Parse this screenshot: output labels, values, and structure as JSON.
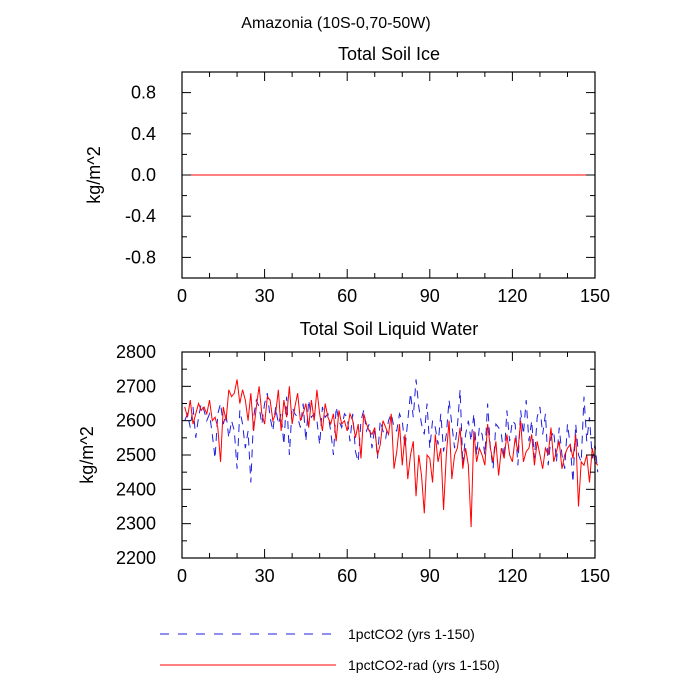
{
  "figure": {
    "title": "Amazonia (10S-0,70-50W)"
  },
  "legend": {
    "entries": [
      {
        "label": "1pctCO2 (yrs 1-150)",
        "color": "#1f1fe0",
        "dash": "dashed"
      },
      {
        "label": "1pctCO2-rad (yrs 1-150)",
        "color": "#ff0000",
        "dash": "solid"
      }
    ]
  },
  "chart_data": [
    {
      "type": "line",
      "title": "Total Soil Ice",
      "xlabel": "",
      "ylabel": "kg/m^2",
      "xlim": [
        0,
        150
      ],
      "ylim": [
        -1.0,
        1.0
      ],
      "xticks": [
        0,
        30,
        60,
        90,
        120,
        150
      ],
      "yticks": [
        -0.8,
        -0.4,
        0.0,
        0.4,
        0.8
      ],
      "ytick_labels": [
        "-0.8",
        "-0.4",
        "0.0",
        "0.4",
        "0.8"
      ],
      "series": [
        {
          "name": "1pctCO2 (yrs 1-150)",
          "color": "#1f1fe0",
          "dash": "dashed",
          "constant": 0.0
        },
        {
          "name": "1pctCO2-rad (yrs 1-150)",
          "color": "#ff0000",
          "dash": "solid",
          "constant": 0.0
        }
      ]
    },
    {
      "type": "line",
      "title": "Total Soil Liquid Water",
      "xlabel": "",
      "ylabel": "kg/m^2",
      "xlim": [
        0,
        150
      ],
      "ylim": [
        2200,
        2800
      ],
      "xticks": [
        0,
        30,
        60,
        90,
        120,
        150
      ],
      "yticks": [
        2200,
        2300,
        2400,
        2500,
        2600,
        2700,
        2800
      ],
      "ytick_labels": [
        "2200",
        "2300",
        "2400",
        "2500",
        "2600",
        "2700",
        "2800"
      ],
      "series": [
        {
          "name": "1pctCO2 (yrs 1-150)",
          "color": "#1f1fe0",
          "dash": "dashed",
          "values": [
            2600,
            2620,
            2580,
            2640,
            2550,
            2610,
            2650,
            2630,
            2600,
            2620,
            2560,
            2490,
            2620,
            2650,
            2590,
            2620,
            2550,
            2600,
            2570,
            2460,
            2630,
            2590,
            2520,
            2570,
            2420,
            2610,
            2660,
            2640,
            2590,
            2650,
            2680,
            2610,
            2570,
            2640,
            2590,
            2620,
            2530,
            2670,
            2500,
            2640,
            2620,
            2610,
            2580,
            2650,
            2540,
            2660,
            2610,
            2620,
            2600,
            2530,
            2640,
            2610,
            2620,
            2570,
            2500,
            2640,
            2600,
            2580,
            2620,
            2610,
            2540,
            2620,
            2510,
            2480,
            2600,
            2630,
            2570,
            2590,
            2520,
            2580,
            2490,
            2600,
            2570,
            2550,
            2600,
            2620,
            2580,
            2570,
            2620,
            2600,
            2520,
            2600,
            2680,
            2610,
            2720,
            2640,
            2590,
            2560,
            2650,
            2520,
            2600,
            2580,
            2530,
            2620,
            2510,
            2560,
            2660,
            2590,
            2520,
            2580,
            2690,
            2470,
            2560,
            2600,
            2540,
            2620,
            2500,
            2580,
            2560,
            2500,
            2650,
            2520,
            2460,
            2590,
            2580,
            2560,
            2490,
            2630,
            2540,
            2600,
            2590,
            2470,
            2630,
            2560,
            2660,
            2540,
            2600,
            2490,
            2610,
            2640,
            2560,
            2620,
            2470,
            2550,
            2570,
            2480,
            2580,
            2500,
            2460,
            2590,
            2530,
            2420,
            2590,
            2500,
            2480,
            2670,
            2540,
            2610,
            2490,
            2530,
            2450
          ]
        },
        {
          "name": "1pctCO2-rad (yrs 1-150)",
          "color": "#ff0000",
          "dash": "solid",
          "values": [
            2640,
            2610,
            2660,
            2590,
            2620,
            2650,
            2630,
            2640,
            2620,
            2660,
            2600,
            2610,
            2580,
            2480,
            2640,
            2600,
            2690,
            2670,
            2680,
            2720,
            2650,
            2690,
            2660,
            2600,
            2680,
            2570,
            2640,
            2700,
            2620,
            2590,
            2670,
            2660,
            2600,
            2620,
            2690,
            2570,
            2660,
            2610,
            2700,
            2590,
            2640,
            2680,
            2600,
            2620,
            2650,
            2580,
            2660,
            2600,
            2690,
            2620,
            2570,
            2650,
            2610,
            2590,
            2620,
            2540,
            2630,
            2590,
            2600,
            2570,
            2620,
            2600,
            2550,
            2590,
            2490,
            2620,
            2590,
            2570,
            2560,
            2580,
            2500,
            2530,
            2600,
            2580,
            2560,
            2620,
            2460,
            2510,
            2590,
            2470,
            2560,
            2430,
            2500,
            2540,
            2380,
            2500,
            2440,
            2330,
            2500,
            2490,
            2420,
            2560,
            2480,
            2520,
            2340,
            2500,
            2600,
            2430,
            2500,
            2520,
            2580,
            2460,
            2520,
            2470,
            2290,
            2570,
            2480,
            2520,
            2500,
            2470,
            2590,
            2520,
            2480,
            2540,
            2440,
            2520,
            2490,
            2560,
            2500,
            2480,
            2550,
            2510,
            2600,
            2480,
            2510,
            2520,
            2560,
            2470,
            2540,
            2500,
            2460,
            2520,
            2500,
            2580,
            2480,
            2510,
            2540,
            2460,
            2500,
            2520,
            2530,
            2490,
            2560,
            2350,
            2480,
            2470,
            2500,
            2420,
            2520,
            2480,
            2470
          ]
        }
      ]
    }
  ]
}
